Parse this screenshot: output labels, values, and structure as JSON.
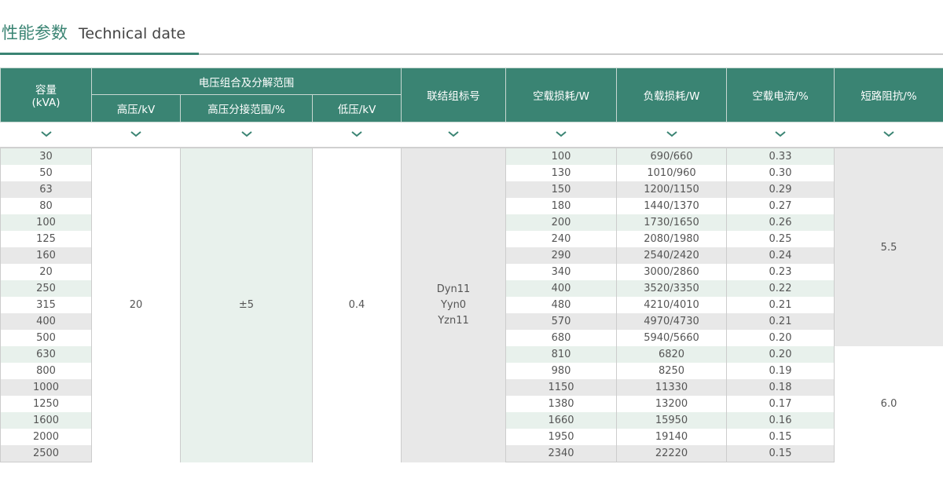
{
  "header": {
    "title_cn": "性能参数",
    "title_en": "Technical date"
  },
  "columns": {
    "capacity": "容量",
    "capacity_unit": "(kVA)",
    "voltage_group": "电压组合及分解范围",
    "hv": "高压/kV",
    "tap": "高压分接范围/%",
    "lv": "低压/kV",
    "connection": "联结组标号",
    "no_load_loss": "空载损耗/W",
    "load_loss": "负载损耗/W",
    "no_load_current": "空载电流/%",
    "impedance": "短路阻抗/%"
  },
  "chevron_icon": "chevron-down-icon",
  "accent_color": "#3a8473",
  "merged": {
    "hv": "20",
    "tap": "±5",
    "lv": "0.4",
    "connection": [
      "Dyn11",
      "Yyn0",
      "Yzn11"
    ],
    "impedance_a": "5.5",
    "impedance_b": "6.0"
  },
  "rows": [
    {
      "cap": "30",
      "nll": "100",
      "ll": "690/660",
      "nlc": "0.33"
    },
    {
      "cap": "50",
      "nll": "130",
      "ll": "1010/960",
      "nlc": "0.30"
    },
    {
      "cap": "63",
      "nll": "150",
      "ll": "1200/1150",
      "nlc": "0.29"
    },
    {
      "cap": "80",
      "nll": "180",
      "ll": "1440/1370",
      "nlc": "0.27"
    },
    {
      "cap": "100",
      "nll": "200",
      "ll": "1730/1650",
      "nlc": "0.26"
    },
    {
      "cap": "125",
      "nll": "240",
      "ll": "2080/1980",
      "nlc": "0.25"
    },
    {
      "cap": "160",
      "nll": "290",
      "ll": "2540/2420",
      "nlc": "0.24"
    },
    {
      "cap": "20",
      "nll": "340",
      "ll": "3000/2860",
      "nlc": "0.23"
    },
    {
      "cap": "250",
      "nll": "400",
      "ll": "3520/3350",
      "nlc": "0.22"
    },
    {
      "cap": "315",
      "nll": "480",
      "ll": "4210/4010",
      "nlc": "0.21"
    },
    {
      "cap": "400",
      "nll": "570",
      "ll": "4970/4730",
      "nlc": "0.21"
    },
    {
      "cap": "500",
      "nll": "680",
      "ll": "5940/5660",
      "nlc": "0.20"
    },
    {
      "cap": "630",
      "nll": "810",
      "ll": "6820",
      "nlc": "0.20"
    },
    {
      "cap": "800",
      "nll": "980",
      "ll": "8250",
      "nlc": "0.19"
    },
    {
      "cap": "1000",
      "nll": "1150",
      "ll": "11330",
      "nlc": "0.18"
    },
    {
      "cap": "1250",
      "nll": "1380",
      "ll": "13200",
      "nlc": "0.17"
    },
    {
      "cap": "1600",
      "nll": "1660",
      "ll": "15950",
      "nlc": "0.16"
    },
    {
      "cap": "2000",
      "nll": "1950",
      "ll": "19140",
      "nlc": "0.15"
    },
    {
      "cap": "2500",
      "nll": "2340",
      "ll": "22220",
      "nlc": "0.15"
    }
  ]
}
